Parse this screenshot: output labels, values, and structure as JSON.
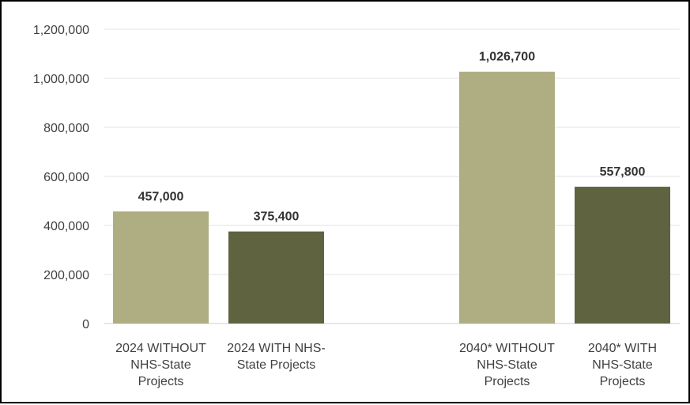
{
  "chart_data": {
    "type": "bar",
    "title": "",
    "xlabel": "",
    "ylabel": "",
    "ylim": [
      0,
      1200000
    ],
    "yticks": [
      "0",
      "200,000",
      "400,000",
      "600,000",
      "800,000",
      "1,000,000",
      "1,200,000"
    ],
    "grid": true,
    "legend": "none",
    "categories": [
      [
        "2024 WITHOUT",
        "NHS-State",
        "Projects"
      ],
      [
        "2024 WITH NHS-",
        "State Projects"
      ],
      [
        "2040* WITHOUT",
        "NHS-State",
        "Projects"
      ],
      [
        "2040* WITH",
        "NHS-State",
        "Projects"
      ]
    ],
    "values": [
      457000,
      375400,
      1026700,
      557800
    ],
    "data_labels": [
      "457,000",
      "375,400",
      "1,026,700",
      "557,800"
    ],
    "colors": [
      "#aeae82",
      "#5f6340",
      "#aeae82",
      "#5f6340"
    ]
  }
}
